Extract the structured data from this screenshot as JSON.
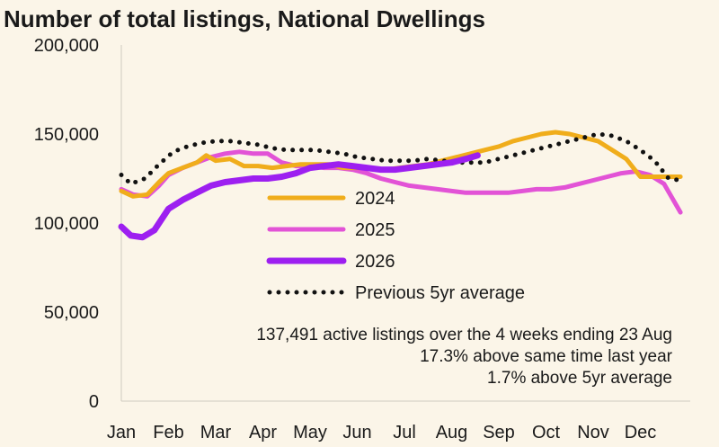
{
  "chart_data": {
    "type": "line",
    "title": "Number of total listings, National Dwellings",
    "xlabel": "",
    "ylabel": "",
    "ylim": [
      0,
      200000
    ],
    "y_ticks": [
      "0",
      "50,000",
      "100,000",
      "150,000",
      "200,000"
    ],
    "categories": [
      "Jan",
      "Feb",
      "Mar",
      "Apr",
      "May",
      "Jun",
      "Jul",
      "Aug",
      "Sep",
      "Oct",
      "Nov",
      "Dec"
    ],
    "grid": false,
    "legend_position": "center",
    "series": [
      {
        "name": "2024",
        "color": "#f0ad1b",
        "style": "solid",
        "x": [
          0,
          0.25,
          0.55,
          0.8,
          1.0,
          1.3,
          1.6,
          1.8,
          2.0,
          2.3,
          2.6,
          2.9,
          3.2,
          3.5,
          3.8,
          4.1,
          4.4,
          4.7,
          5.0,
          5.3,
          5.6,
          5.9,
          6.2,
          6.5,
          6.8,
          7.1,
          7.4,
          7.7,
          8.0,
          8.3,
          8.6,
          8.9,
          9.2,
          9.5,
          9.8,
          10.1,
          10.4,
          10.7,
          11.0,
          11.3,
          11.6,
          11.85
        ],
        "y": [
          118000,
          115000,
          116000,
          123000,
          128000,
          131000,
          134000,
          138000,
          135000,
          136000,
          132000,
          132000,
          131000,
          132000,
          133000,
          133000,
          133000,
          131000,
          131000,
          131000,
          130000,
          131000,
          132000,
          133000,
          135000,
          137000,
          139000,
          141000,
          143000,
          146000,
          148000,
          150000,
          151000,
          150000,
          148000,
          146000,
          141000,
          136000,
          126000,
          126000,
          126000,
          126000
        ]
      },
      {
        "name": "2025",
        "color": "#e253d6",
        "style": "solid",
        "x": [
          0,
          0.25,
          0.55,
          0.8,
          1.0,
          1.3,
          1.6,
          1.9,
          2.2,
          2.5,
          2.8,
          3.1,
          3.4,
          3.7,
          4.0,
          4.3,
          4.6,
          4.9,
          5.2,
          5.5,
          5.8,
          6.1,
          6.4,
          6.7,
          7.0,
          7.3,
          7.6,
          7.9,
          8.2,
          8.5,
          8.8,
          9.1,
          9.4,
          9.7,
          10.0,
          10.3,
          10.6,
          10.9,
          11.2,
          11.5,
          11.85
        ],
        "y": [
          119000,
          116000,
          115000,
          121000,
          127000,
          131000,
          134000,
          137000,
          139000,
          140000,
          139000,
          139000,
          134000,
          132000,
          132000,
          131000,
          131000,
          130000,
          128000,
          125000,
          123000,
          121000,
          120000,
          119000,
          118000,
          117000,
          117000,
          117000,
          117000,
          118000,
          119000,
          119000,
          120000,
          122000,
          124000,
          126000,
          128000,
          129000,
          127000,
          122000,
          106000
        ]
      },
      {
        "name": "2026",
        "color": "#9d1ff0",
        "style": "solid",
        "x": [
          0,
          0.2,
          0.45,
          0.7,
          1.0,
          1.3,
          1.6,
          1.9,
          2.2,
          2.5,
          2.8,
          3.1,
          3.4,
          3.7,
          4.0,
          4.3,
          4.6,
          4.9,
          5.2,
          5.5,
          5.8,
          6.1,
          6.4,
          6.7,
          7.0,
          7.3,
          7.55
        ],
        "y": [
          98000,
          93000,
          92000,
          96000,
          108000,
          113000,
          117000,
          121000,
          123000,
          124000,
          125000,
          125000,
          126000,
          128000,
          131000,
          132000,
          133000,
          132000,
          131000,
          130000,
          130000,
          131000,
          132000,
          133000,
          134000,
          136000,
          138000
        ]
      },
      {
        "name": "Previous 5yr average",
        "color": "#111111",
        "style": "dotted",
        "x": [
          0,
          0.2,
          0.5,
          0.8,
          1.1,
          1.4,
          1.7,
          2.0,
          2.3,
          2.6,
          2.9,
          3.2,
          3.5,
          3.8,
          4.1,
          4.4,
          4.7,
          5.0,
          5.3,
          5.6,
          5.9,
          6.2,
          6.5,
          6.8,
          7.1,
          7.4,
          7.7,
          8.0,
          8.3,
          8.6,
          8.9,
          9.2,
          9.5,
          9.8,
          10.1,
          10.4,
          10.7,
          11.0,
          11.3,
          11.6,
          11.85
        ],
        "y": [
          127000,
          122000,
          125000,
          133000,
          140000,
          143000,
          145000,
          146000,
          146000,
          145000,
          144000,
          142000,
          141000,
          141000,
          141000,
          140000,
          139000,
          137000,
          136000,
          135000,
          135000,
          135000,
          136000,
          135000,
          134000,
          134000,
          134000,
          136000,
          138000,
          140000,
          142000,
          144000,
          146000,
          148000,
          150000,
          149000,
          146000,
          141000,
          135000,
          125000,
          124000
        ]
      }
    ],
    "annotations": [
      "137,491 active listings over the 4 weeks ending 23 Aug",
      "17.3% above same time last year",
      "1.7% above 5yr average"
    ]
  }
}
